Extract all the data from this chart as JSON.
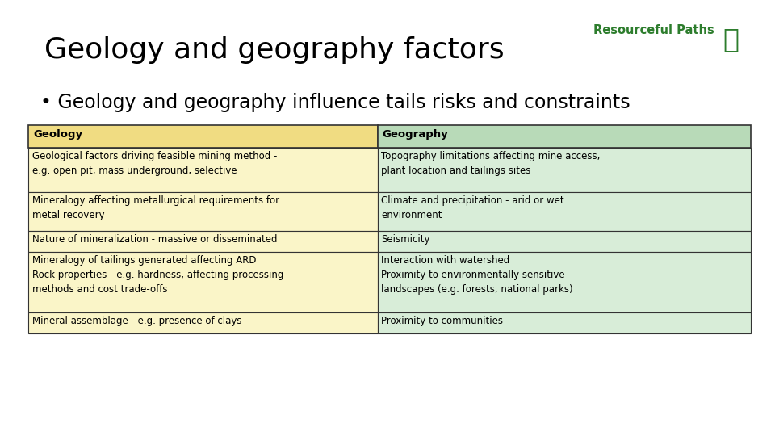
{
  "title": "Geology and geography factors",
  "subtitle": "• Geology and geography influence tails risks and constraints",
  "background_color": "#ffffff",
  "title_color": "#000000",
  "subtitle_color": "#000000",
  "title_fontsize": 26,
  "subtitle_fontsize": 17,
  "logo_text": "Resourceful Paths",
  "logo_color": "#2d7d2d",
  "table": {
    "header_geology": "Geology",
    "header_geography": "Geography",
    "header_geology_bg": "#f0dc82",
    "header_geography_bg": "#b8dab8",
    "row_geology_bg": "#faf5c8",
    "row_geography_bg": "#d8edd8",
    "border_color": "#333333",
    "header_fontsize": 9.5,
    "cell_fontsize": 8.5,
    "geology_rows": [
      "Geological factors driving feasible mining method -\ne.g. open pit, mass underground, selective",
      "Mineralogy affecting metallurgical requirements for\nmetal recovery",
      "Nature of mineralization - massive or disseminated",
      "Mineralogy of tailings generated affecting ARD\nRock properties - e.g. hardness, affecting processing\nmethods and cost trade-offs",
      "Mineral assemblage - e.g. presence of clays"
    ],
    "geography_rows": [
      "Topography limitations affecting mine access,\nplant location and tailings sites",
      "Climate and precipitation - arid or wet\nenvironment",
      "Seismicity",
      "Interaction with watershed\nProximity to environmentally sensitive\nlandscapes (e.g. forests, national parks)",
      "Proximity to communities"
    ]
  }
}
